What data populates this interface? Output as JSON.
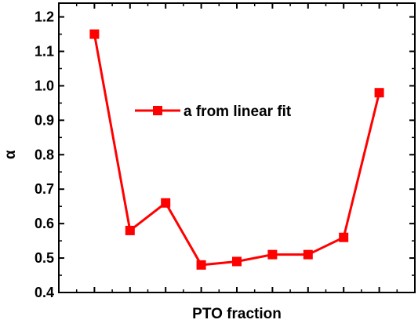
{
  "chart_data": {
    "type": "line",
    "xlabel": "PTO fraction",
    "ylabel": "α",
    "x": [
      1,
      2,
      3,
      4,
      5,
      6,
      7,
      8,
      9
    ],
    "xlim": [
      0,
      10
    ],
    "ylim": [
      0.4,
      1.24
    ],
    "yticks": [
      0.4,
      0.5,
      0.6,
      0.7,
      0.8,
      0.9,
      1.0,
      1.1,
      1.2
    ],
    "ytick_labels": [
      "0.4",
      "0.5",
      "0.6",
      "0.7",
      "0.8",
      "0.9",
      "1.0",
      "1.1",
      "1.2"
    ],
    "series": [
      {
        "name": "a from linear fit",
        "color": "#ff0000",
        "marker": "square",
        "values": [
          1.15,
          0.58,
          0.66,
          0.48,
          0.49,
          0.51,
          0.51,
          0.56,
          0.98
        ]
      }
    ],
    "legend": "upper-center",
    "grid": false
  }
}
